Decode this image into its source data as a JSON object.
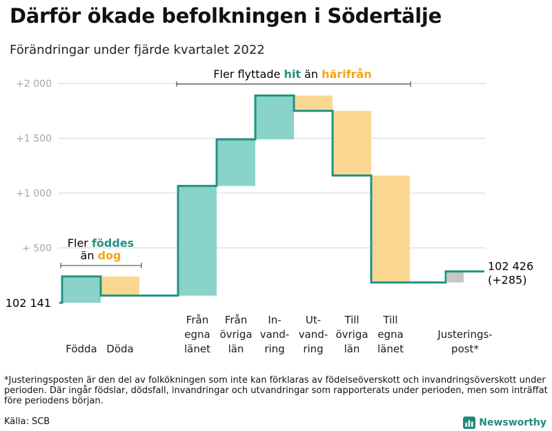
{
  "title": "Därför ökade befolkningen i Södertälje",
  "subtitle": "Förändringar under fjärde kvartalet 2022",
  "chart_data": {
    "type": "waterfall",
    "start_label": "102 141",
    "start_value": 102141,
    "end_label": "102 426",
    "end_change_label": "(+285)",
    "y_ticks": [
      "+2 000",
      "+1 500",
      "+1 000",
      "+ 500"
    ],
    "y_tick_values": [
      2000,
      1500,
      1000,
      500
    ],
    "ylim": [
      0,
      2150
    ],
    "steps": [
      {
        "label": [
          "Födda"
        ],
        "from": 0,
        "to": 240,
        "kind": "positive"
      },
      {
        "label": [
          "Döda"
        ],
        "from": 240,
        "to": 65,
        "kind": "negative"
      },
      {
        "label": [
          "Från",
          "egna",
          "länet"
        ],
        "from": 65,
        "to": 1065,
        "kind": "positive"
      },
      {
        "label": [
          "Från",
          "övriga",
          "län"
        ],
        "from": 1065,
        "to": 1490,
        "kind": "positive"
      },
      {
        "label": [
          "In-",
          "vand-",
          "ring"
        ],
        "from": 1490,
        "to": 1890,
        "kind": "positive"
      },
      {
        "label": [
          "Ut-",
          "vand-",
          "ring"
        ],
        "from": 1890,
        "to": 1750,
        "kind": "negative"
      },
      {
        "label": [
          "Till",
          "övriga",
          "län"
        ],
        "from": 1750,
        "to": 1160,
        "kind": "negative"
      },
      {
        "label": [
          "Till",
          "egna",
          "länet"
        ],
        "from": 1160,
        "to": 185,
        "kind": "negative"
      },
      {
        "label": [
          "Justerings-",
          "post*"
        ],
        "from": 185,
        "to": 285,
        "kind": "adjustment"
      }
    ],
    "annotations": {
      "births": {
        "line1": "Fler ",
        "highlight1": "föddes",
        "line2": "än ",
        "highlight2": "dog"
      },
      "migration": {
        "prefix": "Fler flyttade ",
        "highlight1": "hit",
        "middle": " än ",
        "highlight2": "härifrån"
      }
    },
    "colors": {
      "positive": "#8ad3c9",
      "negative": "#fbd891",
      "adjustment": "#c6c6c6",
      "line": "#1e9384",
      "highlight_positive": "#1e9384",
      "highlight_negative": "#f3a51c",
      "grid": "#d4d4d4",
      "tick_text": "#a6a6a6"
    }
  },
  "footnote": "*Justeringsposten är den del av folkökningen som inte kan förklaras av födelseöverskott och invandringsöverskott under perioden. Där ingår födslar, dödsfall, invandringar och utvandringar som rapporterats under perioden, men som inträffat före periodens början.",
  "source": "Källa: SCB",
  "brand": "Newsworthy"
}
